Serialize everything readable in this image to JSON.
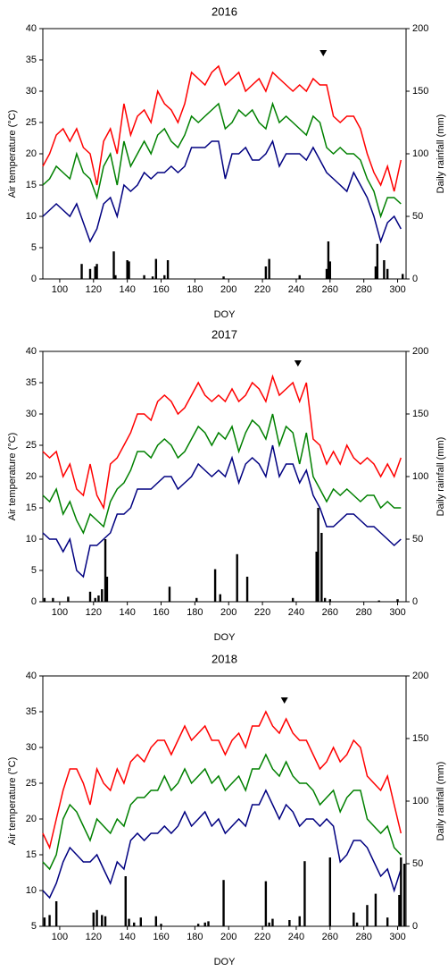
{
  "chart_data": [
    {
      "type": "line",
      "title": "2016",
      "x_label": "DOY",
      "y_label": "Air temperature (°C)",
      "y2_label": "Daily rainfall (mm)",
      "xlim": [
        90,
        305
      ],
      "xticks": [
        100,
        120,
        140,
        160,
        180,
        200,
        220,
        240,
        260,
        280,
        300
      ],
      "ylim": [
        0,
        40
      ],
      "yticks": [
        0,
        5,
        10,
        15,
        20,
        25,
        30,
        35,
        40
      ],
      "y2lim": [
        0,
        200
      ],
      "y2ticks": [
        0,
        50,
        100,
        150,
        200
      ],
      "x": [
        90,
        94,
        98,
        102,
        106,
        110,
        114,
        118,
        122,
        126,
        130,
        134,
        138,
        142,
        146,
        150,
        154,
        158,
        162,
        166,
        170,
        174,
        178,
        182,
        186,
        190,
        194,
        198,
        202,
        206,
        210,
        214,
        218,
        222,
        226,
        230,
        234,
        238,
        242,
        246,
        250,
        254,
        258,
        262,
        266,
        270,
        274,
        278,
        282,
        286,
        290,
        294,
        298,
        302
      ],
      "series": [
        {
          "color": "#ff0000",
          "values": [
            18,
            20,
            23,
            24,
            22,
            24,
            21,
            20,
            15,
            22,
            24,
            20,
            28,
            23,
            26,
            27,
            25,
            30,
            28,
            27,
            25,
            28,
            33,
            32,
            31,
            33,
            34,
            31,
            32,
            33,
            30,
            31,
            32,
            30,
            33,
            32,
            31,
            30,
            31,
            30,
            32,
            31,
            31,
            26,
            25,
            26,
            26,
            24,
            20,
            17,
            15,
            18,
            14,
            19
          ]
        },
        {
          "color": "#008000",
          "values": [
            15,
            16,
            18,
            17,
            16,
            20,
            17,
            16,
            13,
            18,
            20,
            15,
            22,
            18,
            20,
            22,
            20,
            23,
            24,
            22,
            21,
            23,
            26,
            25,
            26,
            27,
            28,
            24,
            25,
            27,
            26,
            27,
            25,
            24,
            28,
            25,
            26,
            25,
            24,
            23,
            26,
            25,
            21,
            20,
            21,
            20,
            20,
            19,
            16,
            14,
            10,
            13,
            13,
            12
          ]
        },
        {
          "color": "#000080",
          "values": [
            10,
            11,
            12,
            11,
            10,
            12,
            9,
            6,
            8,
            12,
            13,
            10,
            15,
            14,
            15,
            17,
            16,
            17,
            17,
            18,
            17,
            18,
            21,
            21,
            21,
            22,
            22,
            16,
            20,
            20,
            21,
            19,
            19,
            20,
            22,
            18,
            20,
            20,
            20,
            19,
            21,
            19,
            17,
            16,
            15,
            14,
            17,
            15,
            13,
            10,
            6,
            9,
            10,
            8
          ]
        },
        {
          "type": "bar",
          "axis": "y2",
          "color": "#000000",
          "x": [
            113,
            118,
            121,
            122,
            132,
            133,
            140,
            141,
            150,
            155,
            157,
            162,
            164,
            197,
            222,
            224,
            242,
            258,
            259,
            260,
            287,
            288,
            292,
            294,
            303
          ],
          "values": [
            12,
            8,
            10,
            12,
            22,
            3,
            15,
            14,
            3,
            2,
            16,
            3,
            15,
            2,
            10,
            16,
            3,
            8,
            30,
            14,
            10,
            28,
            15,
            8,
            4
          ]
        }
      ],
      "markers": [
        {
          "x": 256,
          "y": 36
        }
      ]
    },
    {
      "type": "line",
      "title": "2017",
      "x_label": "DOY",
      "y_label": "Air temperature (°C)",
      "y2_label": "Daily rainfall (mm)",
      "xlim": [
        90,
        305
      ],
      "xticks": [
        100,
        120,
        140,
        160,
        180,
        200,
        220,
        240,
        260,
        280,
        300
      ],
      "ylim": [
        0,
        40
      ],
      "yticks": [
        0,
        5,
        10,
        15,
        20,
        25,
        30,
        35,
        40
      ],
      "y2lim": [
        0,
        200
      ],
      "y2ticks": [
        0,
        50,
        100,
        150,
        200
      ],
      "x": [
        90,
        94,
        98,
        102,
        106,
        110,
        114,
        118,
        122,
        126,
        130,
        134,
        138,
        142,
        146,
        150,
        154,
        158,
        162,
        166,
        170,
        174,
        178,
        182,
        186,
        190,
        194,
        198,
        202,
        206,
        210,
        214,
        218,
        222,
        226,
        230,
        234,
        238,
        242,
        246,
        250,
        254,
        258,
        262,
        266,
        270,
        274,
        278,
        282,
        286,
        290,
        294,
        298,
        302
      ],
      "series": [
        {
          "color": "#ff0000",
          "values": [
            24,
            23,
            24,
            20,
            22,
            18,
            17,
            22,
            17,
            15,
            22,
            23,
            25,
            27,
            30,
            30,
            29,
            32,
            33,
            32,
            30,
            31,
            33,
            35,
            33,
            32,
            33,
            32,
            34,
            32,
            33,
            35,
            34,
            32,
            36,
            33,
            34,
            35,
            32,
            35,
            26,
            25,
            22,
            24,
            22,
            25,
            23,
            22,
            23,
            22,
            20,
            22,
            20,
            23
          ]
        },
        {
          "color": "#008000",
          "values": [
            17,
            16,
            18,
            14,
            16,
            13,
            11,
            14,
            13,
            12,
            16,
            18,
            19,
            21,
            24,
            24,
            23,
            25,
            26,
            25,
            23,
            24,
            26,
            28,
            27,
            25,
            27,
            26,
            28,
            24,
            27,
            29,
            28,
            26,
            30,
            25,
            28,
            27,
            22,
            27,
            20,
            18,
            16,
            18,
            17,
            18,
            17,
            16,
            17,
            17,
            15,
            16,
            15,
            15
          ]
        },
        {
          "color": "#000080",
          "values": [
            11,
            10,
            10,
            8,
            10,
            5,
            4,
            9,
            9,
            10,
            11,
            14,
            14,
            15,
            18,
            18,
            18,
            19,
            20,
            20,
            18,
            19,
            20,
            22,
            21,
            20,
            21,
            20,
            23,
            19,
            22,
            23,
            22,
            20,
            25,
            20,
            22,
            22,
            19,
            21,
            17,
            15,
            12,
            12,
            13,
            14,
            14,
            13,
            12,
            12,
            11,
            10,
            9,
            10
          ]
        },
        {
          "type": "bar",
          "axis": "y2",
          "color": "#000000",
          "x": [
            91,
            96,
            105,
            118,
            121,
            123,
            125,
            127,
            128,
            165,
            181,
            192,
            195,
            205,
            211,
            238,
            252,
            253,
            255,
            257,
            260,
            289,
            300
          ],
          "values": [
            3,
            3,
            4,
            8,
            3,
            5,
            10,
            50,
            20,
            12,
            3,
            26,
            6,
            38,
            20,
            3,
            40,
            75,
            55,
            3,
            2,
            1,
            2
          ]
        }
      ],
      "markers": [
        {
          "x": 241,
          "y": 38
        }
      ]
    },
    {
      "type": "line",
      "title": "2018",
      "x_label": "DOY",
      "y_label": "Air temperature (°C)",
      "y2_label": "Daily rainfall (mm)",
      "xlim": [
        90,
        305
      ],
      "xticks": [
        100,
        120,
        140,
        160,
        180,
        200,
        220,
        240,
        260,
        280,
        300
      ],
      "ylim": [
        5,
        40
      ],
      "yticks": [
        5,
        10,
        15,
        20,
        25,
        30,
        35,
        40
      ],
      "y2lim": [
        0,
        200
      ],
      "y2ticks": [
        0,
        50,
        100,
        150,
        200
      ],
      "x": [
        90,
        94,
        98,
        102,
        106,
        110,
        114,
        118,
        122,
        126,
        130,
        134,
        138,
        142,
        146,
        150,
        154,
        158,
        162,
        166,
        170,
        174,
        178,
        182,
        186,
        190,
        194,
        198,
        202,
        206,
        210,
        214,
        218,
        222,
        226,
        230,
        234,
        238,
        242,
        246,
        250,
        254,
        258,
        262,
        266,
        270,
        274,
        278,
        282,
        286,
        290,
        294,
        298,
        302
      ],
      "series": [
        {
          "color": "#ff0000",
          "values": [
            18,
            16,
            20,
            24,
            27,
            27,
            25,
            22,
            27,
            25,
            24,
            27,
            25,
            28,
            29,
            28,
            30,
            31,
            31,
            29,
            31,
            33,
            31,
            32,
            33,
            31,
            31,
            29,
            31,
            32,
            30,
            33,
            33,
            35,
            33,
            32,
            34,
            32,
            31,
            31,
            29,
            27,
            28,
            30,
            28,
            29,
            31,
            30,
            26,
            25,
            24,
            26,
            22,
            18
          ]
        },
        {
          "color": "#008000",
          "values": [
            14,
            13,
            15,
            20,
            22,
            21,
            19,
            17,
            20,
            19,
            18,
            20,
            19,
            22,
            23,
            23,
            24,
            24,
            26,
            24,
            25,
            27,
            25,
            26,
            27,
            25,
            26,
            24,
            25,
            26,
            24,
            27,
            27,
            29,
            27,
            26,
            28,
            26,
            25,
            25,
            24,
            22,
            23,
            24,
            21,
            23,
            24,
            24,
            20,
            19,
            18,
            19,
            16,
            15
          ]
        },
        {
          "color": "#000080",
          "values": [
            10,
            9,
            11,
            14,
            16,
            15,
            14,
            14,
            15,
            13,
            11,
            14,
            13,
            17,
            18,
            17,
            18,
            18,
            19,
            18,
            19,
            21,
            19,
            20,
            21,
            19,
            20,
            18,
            19,
            20,
            19,
            22,
            22,
            24,
            22,
            20,
            22,
            21,
            19,
            20,
            20,
            19,
            20,
            19,
            14,
            15,
            17,
            17,
            16,
            14,
            12,
            13,
            10,
            13
          ]
        },
        {
          "type": "bar",
          "axis": "y2",
          "color": "#000000",
          "x": [
            91,
            94,
            98,
            120,
            122,
            125,
            127,
            139,
            141,
            144,
            148,
            157,
            160,
            182,
            186,
            188,
            197,
            222,
            224,
            226,
            236,
            242,
            245,
            260,
            274,
            276,
            282,
            287,
            294,
            301,
            302,
            304
          ],
          "values": [
            7,
            9,
            20,
            11,
            13,
            9,
            8,
            40,
            6,
            3,
            7,
            8,
            2,
            2,
            3,
            4,
            37,
            36,
            3,
            6,
            5,
            8,
            52,
            55,
            11,
            3,
            17,
            26,
            7,
            25,
            55,
            50
          ]
        }
      ],
      "markers": [
        {
          "x": 233,
          "y": 36.5
        }
      ]
    }
  ]
}
